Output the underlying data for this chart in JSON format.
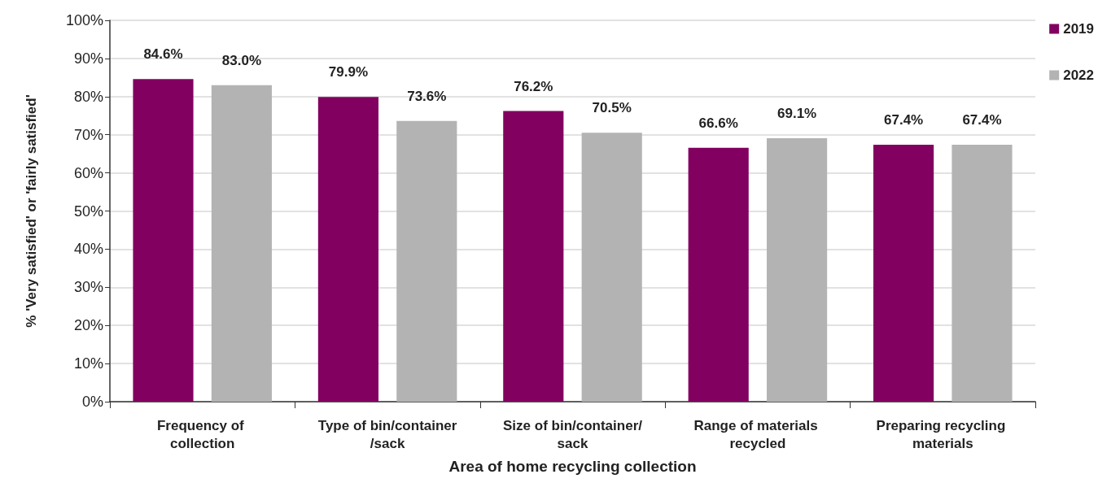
{
  "chart_data": {
    "type": "bar",
    "xlabel": "Area of home recycling collection",
    "ylabel": "% 'Very satisfied' or 'fairly satisfied'",
    "categories": [
      "Frequency of collection",
      "Type of bin/container/sack",
      "Size of bin/container/sack",
      "Range of materials recycled",
      "Preparing recycling materials"
    ],
    "series": [
      {
        "name": "2019",
        "color": "#820060",
        "values": [
          84.6,
          79.9,
          76.2,
          66.6,
          67.4
        ],
        "value_labels": [
          "84.6%",
          "79.9%",
          "76.2%",
          "66.6%",
          "67.4%"
        ]
      },
      {
        "name": "2022",
        "color": "#b3b3b3",
        "values": [
          83.0,
          73.6,
          70.5,
          69.1,
          67.4
        ],
        "value_labels": [
          "83.0%",
          "73.6%",
          "70.5%",
          "69.1%",
          "67.4%"
        ]
      }
    ],
    "ylim": [
      0,
      100
    ],
    "yticks": [
      {
        "value": 0,
        "label": "0%"
      },
      {
        "value": 10,
        "label": "10%"
      },
      {
        "value": 20,
        "label": "20%"
      },
      {
        "value": 30,
        "label": "30%"
      },
      {
        "value": 40,
        "label": "40%"
      },
      {
        "value": 50,
        "label": "50%"
      },
      {
        "value": 60,
        "label": "60%"
      },
      {
        "value": 70,
        "label": "70%"
      },
      {
        "value": 80,
        "label": "80%"
      },
      {
        "value": 90,
        "label": "90%"
      },
      {
        "value": 100,
        "label": "100%"
      }
    ],
    "grid": "y",
    "legend": "top right"
  }
}
